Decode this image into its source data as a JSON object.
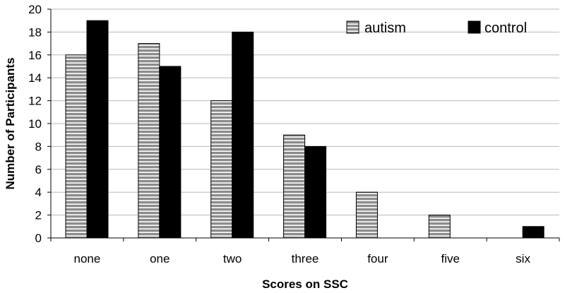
{
  "chart_data": {
    "type": "bar",
    "title": "",
    "xlabel": "Scores on SSC",
    "ylabel": "Number of Participants",
    "categories": [
      "none",
      "one",
      "two",
      "three",
      "four",
      "five",
      "six"
    ],
    "series": [
      {
        "name": "autism",
        "values": [
          16,
          17,
          12,
          9,
          4,
          2,
          0
        ],
        "color": "#8c8c8c",
        "pattern": "horizontal-stripes"
      },
      {
        "name": "control",
        "values": [
          19,
          15,
          18,
          8,
          0,
          0,
          1
        ],
        "color": "#000000",
        "pattern": "solid"
      }
    ],
    "ylim": [
      0,
      20
    ],
    "yticks": [
      0,
      2,
      4,
      6,
      8,
      10,
      12,
      14,
      16,
      18,
      20
    ],
    "grid": true,
    "legend_position": "top-right"
  }
}
